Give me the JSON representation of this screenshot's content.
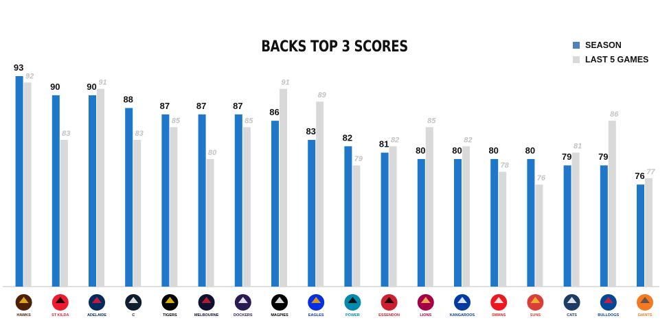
{
  "colors": {
    "season": "#1f77c9",
    "last5": "#d9d9d9",
    "axis": "#bfbfbf"
  },
  "legend": {
    "season_label": "SEASON",
    "last5_label": "LAST 5 GAMES"
  },
  "chart_data": {
    "type": "bar",
    "title": "BACKS TOP 3 SCORES",
    "xlabel": "",
    "ylabel": "",
    "ylim": [
      60,
      95
    ],
    "grid": false,
    "legend_position": "top-right",
    "categories": [
      "Hawks",
      "St Kilda",
      "Adelaide",
      "Carlton",
      "Richmond",
      "Melbourne",
      "Fremantle",
      "Collingwood",
      "West Coast",
      "Port Adelaide",
      "Essendon",
      "Brisbane Lions",
      "Kangaroos",
      "Sydney Swans",
      "Gold Coast Suns",
      "Geelong Cats",
      "Western Bulldogs",
      "GWS Giants"
    ],
    "series": [
      {
        "name": "SEASON",
        "values": [
          93,
          90,
          90,
          88,
          87,
          87,
          87,
          86,
          83,
          82,
          81,
          80,
          80,
          80,
          80,
          79,
          79,
          76
        ]
      },
      {
        "name": "LAST 5 GAMES",
        "values": [
          92,
          83,
          91,
          83,
          85,
          80,
          85,
          91,
          89,
          79,
          82,
          85,
          82,
          78,
          76,
          81,
          86,
          77
        ]
      }
    ]
  },
  "logos": [
    {
      "text": "HAWKS",
      "color": "#4d2004",
      "accent": "#fbbf15",
      "icon": "hawk-emblem"
    },
    {
      "text": "ST KILDA",
      "color": "#ed1b2f",
      "accent": "#000000",
      "icon": "saints-emblem"
    },
    {
      "text": "ADELAIDE",
      "color": "#002b5c",
      "accent": "#e21937",
      "icon": "crow-emblem"
    },
    {
      "text": "C",
      "color": "#0e1e2d",
      "accent": "#ffffff",
      "icon": "carlton-monogram"
    },
    {
      "text": "TIGERS",
      "color": "#000000",
      "accent": "#fed102",
      "icon": "tiger-emblem"
    },
    {
      "text": "MELBOURNE",
      "color": "#0f1131",
      "accent": "#cc2031",
      "icon": "demon-emblem"
    },
    {
      "text": "DOCKERS",
      "color": "#2a1a54",
      "accent": "#ffffff",
      "icon": "anchor-emblem"
    },
    {
      "text": "MAGPIES",
      "color": "#000000",
      "accent": "#ffffff",
      "icon": "magpie-emblem"
    },
    {
      "text": "EAGLES",
      "color": "#062ee2",
      "accent": "#f2a900",
      "icon": "eagle-emblem"
    },
    {
      "text": "POWER",
      "color": "#008aab",
      "accent": "#000000",
      "icon": "power-emblem"
    },
    {
      "text": "ESSENDON",
      "color": "#cc2031",
      "accent": "#000000",
      "icon": "bomber-emblem"
    },
    {
      "text": "LIONS",
      "color": "#a30046",
      "accent": "#fdbe57",
      "icon": "lion-emblem"
    },
    {
      "text": "KANGAROOS",
      "color": "#013b9f",
      "accent": "#ffffff",
      "icon": "kangaroo-emblem"
    },
    {
      "text": "SWANS",
      "color": "#ed171f",
      "accent": "#ffffff",
      "icon": "swan-emblem"
    },
    {
      "text": "SUNS",
      "color": "#d93e39",
      "accent": "#f2c12e",
      "icon": "sun-emblem"
    },
    {
      "text": "CATS",
      "color": "#1c3c63",
      "accent": "#ffffff",
      "icon": "cat-emblem"
    },
    {
      "text": "BULLDOGS",
      "color": "#014896",
      "accent": "#e31937",
      "icon": "bulldog-emblem"
    },
    {
      "text": "GIANTS",
      "color": "#f47920",
      "accent": "#4a4f55",
      "icon": "giants-emblem"
    }
  ]
}
